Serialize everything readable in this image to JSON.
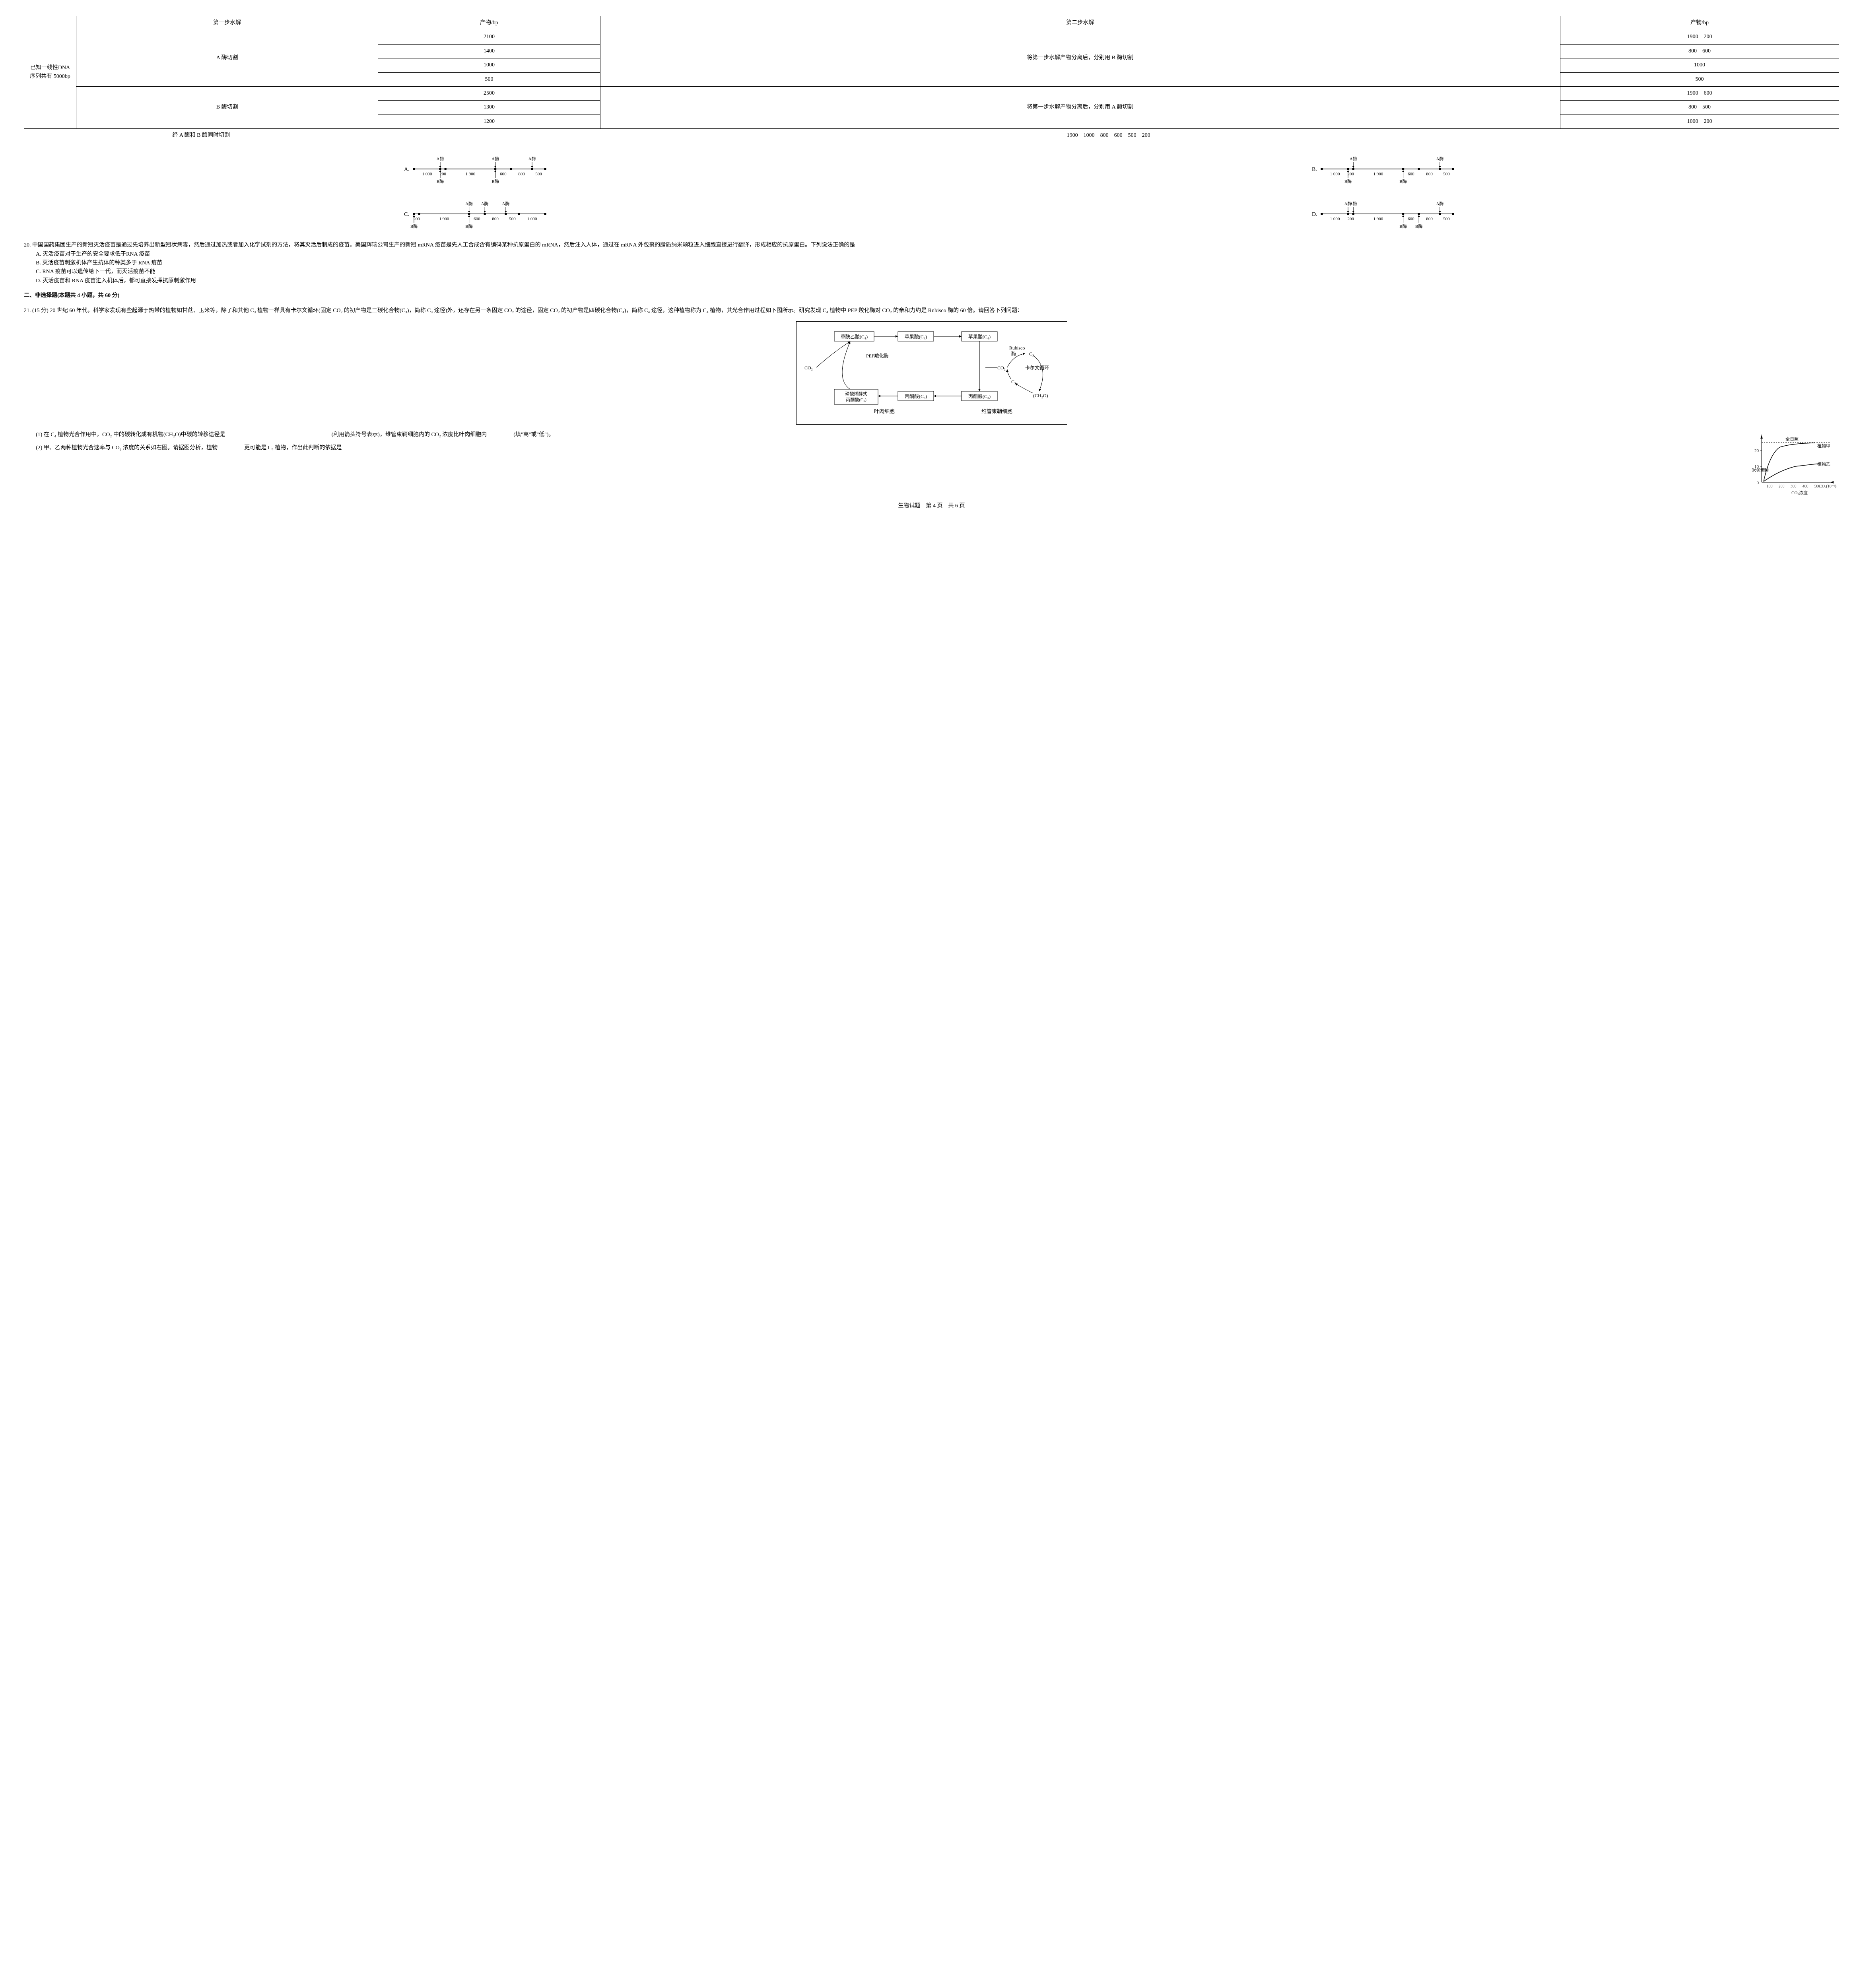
{
  "table": {
    "left_label": "已知一线性DNA 序列共有 5000bp",
    "headers": [
      "第一步水解",
      "产物/bp",
      "第二步水解",
      "产物/bp"
    ],
    "a_enzyme": "A 酶切割",
    "a_products": [
      "2100",
      "1400",
      "1000",
      "500"
    ],
    "step2_a": "将第一步水解产物分离后，分别用 B 酶切割",
    "a_step2_products": [
      "1900　200",
      "800　600",
      "1000",
      "500"
    ],
    "b_enzyme": "B 酶切割",
    "b_products": [
      "2500",
      "1300",
      "1200"
    ],
    "step2_b": "将第一步水解产物分离后，分别用 A 酶切割",
    "b_step2_products": [
      "1900　600",
      "800　500",
      "1000　200"
    ],
    "combined_label": "经 A 酶和 B 酶同时切割",
    "combined_products": "1900　1000　800　600　500　200"
  },
  "diagrams": {
    "A": {
      "label": "A.",
      "segments": [
        "1 000",
        "200",
        "1 900",
        "600",
        "800",
        "500"
      ],
      "a_positions": [
        1,
        3,
        5
      ],
      "b_positions": [
        1,
        3
      ]
    },
    "B": {
      "label": "B.",
      "segments": [
        "1 000",
        "200",
        "1 900",
        "600",
        "800",
        "500"
      ],
      "a_positions": [
        2,
        5
      ],
      "b_positions": [
        1,
        3
      ]
    },
    "C": {
      "label": "C.",
      "segments": [
        "200",
        "1 900",
        "600",
        "800",
        "500",
        "1 000"
      ],
      "a_positions": [
        2,
        3,
        4
      ],
      "b_positions": [
        0,
        2
      ]
    },
    "D": {
      "label": "D.",
      "segments": [
        "1 000",
        "200",
        "1 900",
        "600",
        "800",
        "500"
      ],
      "a_positions": [
        1,
        2,
        5
      ],
      "b_positions": [
        3,
        4
      ]
    },
    "a_label": "A酶",
    "b_label": "B酶"
  },
  "q20": {
    "number": "20.",
    "text": "中国国药集团生产的新冠灭活疫苗是通过先培养出新型冠状病毒，然后通过加热或者加入化学试剂的方法，将其灭活后制成的疫苗。美国辉瑞公司生产的新冠 mRNA 疫苗是先人工合成含有编码某种抗原蛋白的 mRNA，然后注入人体，通过在 mRNA 外包裹的脂质纳米颗粒进入细胞直接进行翻译，形成相应的抗原蛋白。下列说法正确的是",
    "options": {
      "A": "A. 灭活疫苗对于生产的安全要求低于RNA 疫苗",
      "B": "B. 灭活疫苗刺激机体产生抗体的种类多于 RNA 疫苗",
      "C": "C. RNA 疫苗可以遗传给下一代，而灭活疫苗不能",
      "D": "D. 灭活疫苗和 RNA 疫苗进入机体后，都可直接发挥抗原刺激作用"
    }
  },
  "section2": "二、非选择题(本题共 4 小题，共 60 分)",
  "q21": {
    "number": "21.",
    "points": "(15 分)",
    "text": "20 世纪 60 年代，科学家发现有些起源于热带的植物如甘蔗、玉米等，除了和其他 C₃ 植物一样具有卡尔文循环(固定 CO₂ 的初产物是三碳化合物(C₃)，简称 C₃ 途径)外，还存在另一条固定 CO₂ 的途径，固定 CO₂ 的初产物是四碳化合物(C₄)，简称 C₄ 途径，这种植物称为 C₄ 植物，其光合作用过程如下图所示。研究发现 C₄ 植物中 PEP 羧化酶对 CO₂ 的亲和力约是 Rubisco 酶的 60 倍。请回答下列问题：",
    "flow": {
      "box1": "草酰乙酸(C₄)",
      "box2": "苹果酸(C₄)",
      "box3": "苹果酸(C₄)",
      "pep": "PEP羧化酶",
      "rubisco": "Rubisco酶",
      "co2_left": "CO₂",
      "co2_right": "CO₂",
      "calvin": "卡尔文循环",
      "c3": "C₃",
      "c5": "C₅",
      "ch2o": "(CH₂O)",
      "box4": "磷酸烯醇式丙酮酸(C₃)",
      "box5": "丙酮酸(C₃)",
      "box6": "丙酮酸(C₃)",
      "left_label": "叶肉细胞",
      "right_label": "维管束鞘细胞"
    },
    "sub1": {
      "label": "(1)",
      "text1": "在 C₄ 植物光合作用中，CO₂ 中的碳转化成有机物(CH₂O)中碳的转移途径是",
      "text2": "(利用箭头符号表示)，维管束鞘细胞内的 CO₂ 浓度比叶肉细胞内",
      "text3": "(填\"高\"或\"低\")。"
    },
    "sub2": {
      "label": "(2)",
      "text1": "甲、乙两种植物光合速率与 CO₂ 浓度的关系如右图。请据图分析，植物",
      "text2": "更可能是 C₄ 植物，作出此判断的依据是"
    }
  },
  "chart": {
    "title": "全日照",
    "series1": "植物甲",
    "series2": "植物乙",
    "yaxis": "光合速率",
    "yticks": [
      "0",
      "10",
      "20"
    ],
    "xaxis": "CO₂浓度",
    "xticks": [
      "100",
      "200",
      "300",
      "400",
      "500"
    ],
    "xunit": "CO₂(10⁻⁶)",
    "series1_color": "#000000",
    "series2_color": "#000000",
    "background": "#ffffff"
  },
  "footer": "生物试题　第 4 页　共 6 页"
}
